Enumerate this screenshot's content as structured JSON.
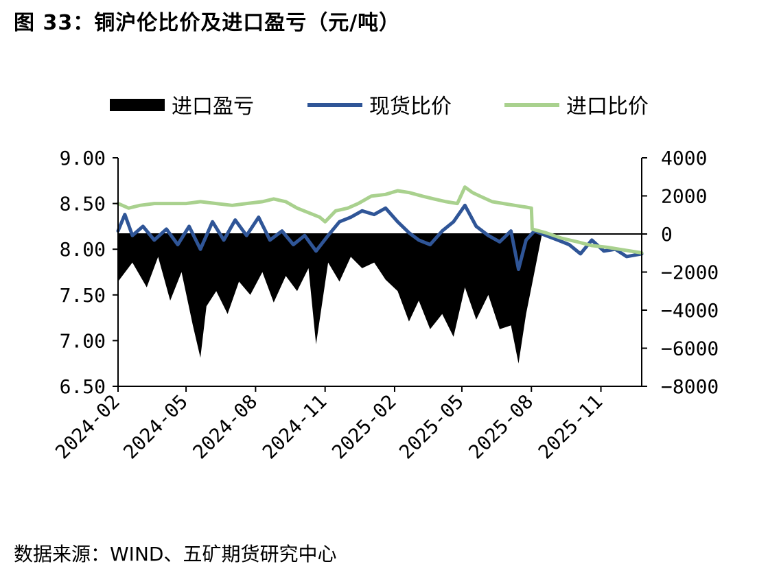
{
  "title": "图 33：铜沪伦比价及进口盈亏（元/吨）",
  "source": "数据来源：WIND、五矿期货研究中心",
  "chart_data": {
    "type": "line",
    "legend_position": "top",
    "grid": false,
    "x_tick_labels": [
      "2024-02",
      "2024-05",
      "2024-08",
      "2024-11",
      "2025-02",
      "2025-05",
      "2025-08",
      "2025-11"
    ],
    "x_range": [
      "2024-02-01",
      "2025-12-25"
    ],
    "y_left": {
      "ticks": [
        "9.00",
        "8.50",
        "8.00",
        "7.50",
        "7.00",
        "6.50"
      ],
      "min": 6.5,
      "max": 9.0
    },
    "y_right": {
      "ticks": [
        "4000",
        "2000",
        "0",
        "-2000",
        "-4000",
        "-6000",
        "-8000"
      ],
      "min": -8000,
      "max": 4000
    },
    "series": [
      {
        "name": "进口盈亏",
        "type": "area",
        "axis": "right",
        "color": "#000000",
        "x": [
          "2024-02-01",
          "2024-02-20",
          "2024-03-10",
          "2024-03-25",
          "2024-04-10",
          "2024-04-25",
          "2024-05-10",
          "2024-05-20",
          "2024-05-28",
          "2024-06-10",
          "2024-06-25",
          "2024-07-10",
          "2024-07-25",
          "2024-08-10",
          "2024-08-25",
          "2024-09-10",
          "2024-09-25",
          "2024-10-10",
          "2024-10-20",
          "2024-11-05",
          "2024-11-20",
          "2024-12-05",
          "2024-12-20",
          "2025-01-05",
          "2025-01-20",
          "2025-02-05",
          "2025-02-20",
          "2025-03-05",
          "2025-03-20",
          "2025-04-05",
          "2025-04-20",
          "2025-05-05",
          "2025-05-20",
          "2025-06-05",
          "2025-06-20",
          "2025-07-05",
          "2025-07-15",
          "2025-07-25",
          "2025-08-01",
          "2025-08-15",
          "2025-09-01",
          "2025-09-15",
          "2025-10-01",
          "2025-10-15",
          "2025-10-25",
          "2025-11-10",
          "2025-11-25",
          "2025-12-10",
          "2025-12-25"
        ],
        "values": [
          -2500,
          -1500,
          -2800,
          -1200,
          -3500,
          -2000,
          -4800,
          -6500,
          -3800,
          -3000,
          -4200,
          -2500,
          -3200,
          -2000,
          -3600,
          -2200,
          -3000,
          -1800,
          -5800,
          -1500,
          -2500,
          -1200,
          -1800,
          -1500,
          -2400,
          -3000,
          -4600,
          -3500,
          -5000,
          -4200,
          -5400,
          -2800,
          -4500,
          -3200,
          -5000,
          -4800,
          -6800,
          -4200,
          -2800,
          0,
          0,
          0,
          0,
          0,
          0,
          0,
          0,
          0,
          0
        ]
      },
      {
        "name": "现货比价",
        "type": "line",
        "axis": "left",
        "color": "#2f5597",
        "x": [
          "2024-02-01",
          "2024-02-10",
          "2024-02-20",
          "2024-03-05",
          "2024-03-20",
          "2024-04-05",
          "2024-04-20",
          "2024-05-05",
          "2024-05-20",
          "2024-06-05",
          "2024-06-20",
          "2024-07-05",
          "2024-07-20",
          "2024-08-05",
          "2024-08-20",
          "2024-09-05",
          "2024-09-20",
          "2024-10-05",
          "2024-10-20",
          "2024-11-05",
          "2024-11-20",
          "2024-12-05",
          "2024-12-20",
          "2025-01-05",
          "2025-01-20",
          "2025-02-05",
          "2025-02-20",
          "2025-03-05",
          "2025-03-20",
          "2025-04-05",
          "2025-04-20",
          "2025-05-05",
          "2025-05-20",
          "2025-06-05",
          "2025-06-20",
          "2025-07-05",
          "2025-07-15",
          "2025-07-25",
          "2025-08-05",
          "2025-08-20",
          "2025-09-05",
          "2025-09-20",
          "2025-10-05",
          "2025-10-20",
          "2025-11-05",
          "2025-11-20",
          "2025-12-05",
          "2025-12-25"
        ],
        "values": [
          8.2,
          8.38,
          8.15,
          8.25,
          8.1,
          8.22,
          8.05,
          8.25,
          8.0,
          8.3,
          8.1,
          8.32,
          8.15,
          8.35,
          8.1,
          8.2,
          8.05,
          8.15,
          7.98,
          8.15,
          8.3,
          8.35,
          8.42,
          8.38,
          8.45,
          8.3,
          8.18,
          8.1,
          8.05,
          8.2,
          8.3,
          8.48,
          8.25,
          8.15,
          8.08,
          8.2,
          7.78,
          8.1,
          8.2,
          8.15,
          8.1,
          8.05,
          7.95,
          8.1,
          7.98,
          8.0,
          7.92,
          7.95
        ]
      },
      {
        "name": "进口比价",
        "type": "line",
        "axis": "left",
        "color": "#a9d18e",
        "x": [
          "2024-02-01",
          "2024-02-15",
          "2024-03-01",
          "2024-03-20",
          "2024-04-10",
          "2024-05-01",
          "2024-05-20",
          "2024-06-10",
          "2024-07-01",
          "2024-07-20",
          "2024-08-10",
          "2024-08-25",
          "2024-09-10",
          "2024-09-25",
          "2024-10-10",
          "2024-10-25",
          "2024-11-01",
          "2024-11-15",
          "2024-12-01",
          "2024-12-15",
          "2025-01-01",
          "2025-01-20",
          "2025-02-05",
          "2025-02-20",
          "2025-03-10",
          "2025-03-25",
          "2025-04-10",
          "2025-04-25",
          "2025-05-05",
          "2025-05-15",
          "2025-05-25",
          "2025-06-10",
          "2025-06-25",
          "2025-07-10",
          "2025-07-25",
          "2025-08-01",
          "2025-08-02",
          "2025-08-20",
          "2025-09-10",
          "2025-10-01",
          "2025-10-20",
          "2025-11-10",
          "2025-11-25",
          "2025-12-10",
          "2025-12-25"
        ],
        "values": [
          8.5,
          8.45,
          8.48,
          8.5,
          8.5,
          8.5,
          8.52,
          8.5,
          8.48,
          8.5,
          8.52,
          8.55,
          8.52,
          8.45,
          8.4,
          8.35,
          8.3,
          8.42,
          8.45,
          8.5,
          8.58,
          8.6,
          8.64,
          8.62,
          8.58,
          8.55,
          8.52,
          8.5,
          8.68,
          8.62,
          8.58,
          8.52,
          8.5,
          8.48,
          8.46,
          8.45,
          8.22,
          8.18,
          8.12,
          8.08,
          8.04,
          8.02,
          8.0,
          7.98,
          7.96
        ]
      }
    ]
  }
}
